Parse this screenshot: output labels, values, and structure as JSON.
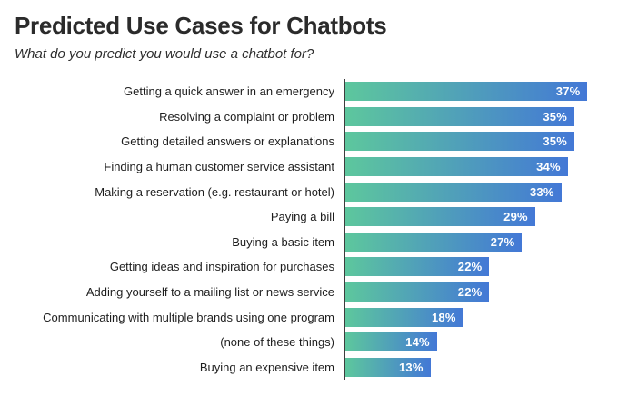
{
  "header": {
    "title": "Predicted Use Cases for Chatbots",
    "subtitle": "What do you predict you would use a chatbot for?"
  },
  "chart_data": {
    "type": "bar",
    "orientation": "horizontal",
    "title": "Predicted Use Cases for Chatbots",
    "subtitle": "What do you predict you would use a chatbot for?",
    "categories": [
      "Getting a quick answer in an emergency",
      "Resolving a complaint or problem",
      "Getting detailed answers or explanations",
      "Finding a human customer service assistant",
      "Making a reservation (e.g. restaurant or hotel)",
      "Paying a bill",
      "Buying a basic item",
      "Getting ideas and inspiration for purchases",
      "Adding yourself to a mailing list or news service",
      "Communicating with multiple brands using one program",
      "(none of these things)",
      "Buying an expensive item"
    ],
    "values": [
      37,
      35,
      35,
      34,
      33,
      29,
      27,
      22,
      22,
      18,
      14,
      13
    ],
    "value_suffix": "%",
    "value_labels": [
      "37%",
      "35%",
      "35%",
      "34%",
      "33%",
      "29%",
      "27%",
      "22%",
      "22%",
      "18%",
      "14%",
      "13%"
    ],
    "xlim": [
      0,
      40
    ],
    "grid": false,
    "legend": false,
    "bar_gradient": [
      "#5dc79d",
      "#4378d6"
    ],
    "axis_color": "#3d3d3d",
    "value_label_color": "#ffffff",
    "value_label_position": "inside-end"
  }
}
